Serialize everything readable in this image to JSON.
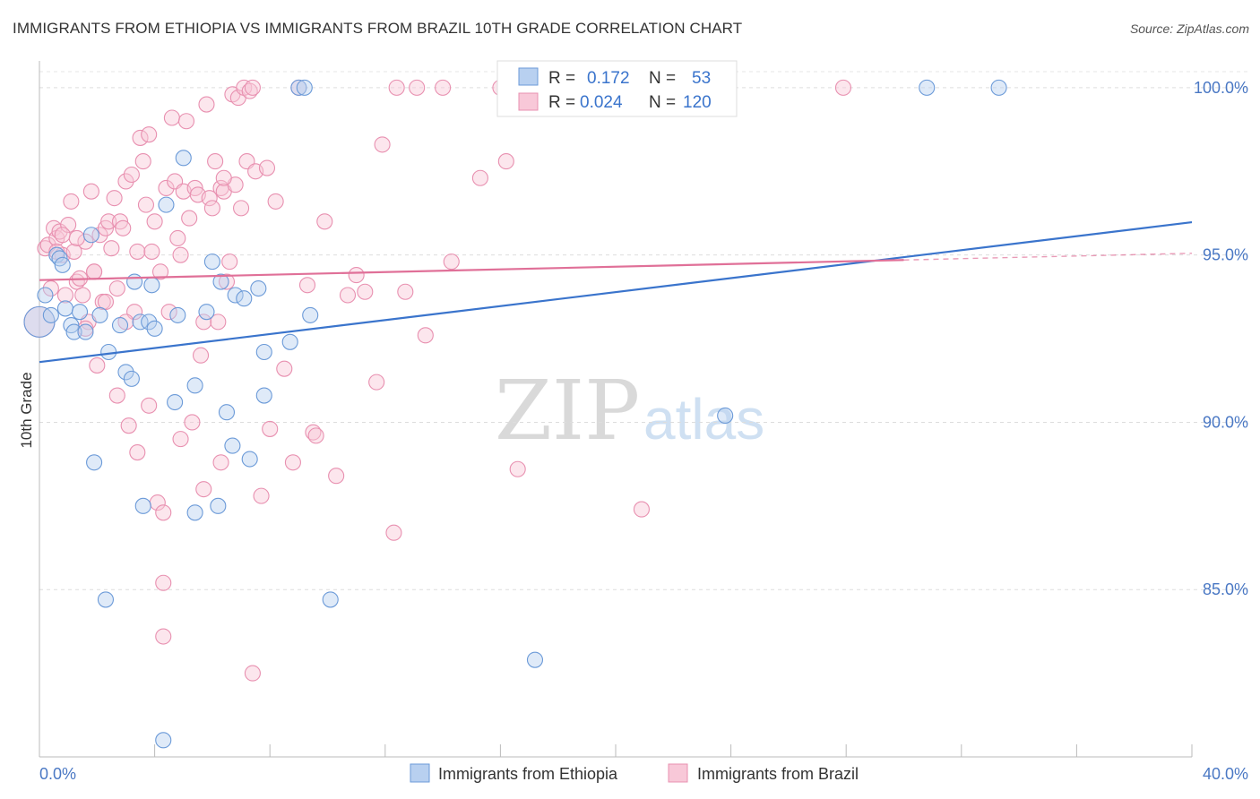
{
  "title": "IMMIGRANTS FROM ETHIOPIA VS IMMIGRANTS FROM BRAZIL 10TH GRADE CORRELATION CHART",
  "source": "Source: ZipAtlas.com",
  "watermark": {
    "zip": "ZIP",
    "atlas": "atlas"
  },
  "colors": {
    "ethiopia_fill": "#b8d0f0",
    "ethiopia_stroke": "#6b9ad8",
    "ethiopia_line": "#3a74cc",
    "brazil_fill": "#f8c8d8",
    "brazil_stroke": "#e890b0",
    "brazil_line": "#e07098",
    "tick_text": "#4a78c4"
  },
  "stats": {
    "r_label": "R =",
    "n_label": "N =",
    "ethiopia": {
      "r": "0.172",
      "n": "53"
    },
    "brazil": {
      "r": "0.024",
      "n": "120"
    }
  },
  "chart_data": {
    "type": "scatter",
    "title": "IMMIGRANTS FROM ETHIOPIA VS IMMIGRANTS FROM BRAZIL 10TH GRADE CORRELATION CHART",
    "xlabel": "",
    "ylabel": "10th Grade",
    "xlim": [
      0,
      40
    ],
    "ylim": [
      80,
      100.8
    ],
    "x_tick_labels": [
      "0.0%",
      "40.0%"
    ],
    "y_ticks": [
      85,
      90,
      95,
      100
    ],
    "y_tick_labels": [
      "85.0%",
      "90.0%",
      "95.0%",
      "100.0%"
    ],
    "grid": true,
    "legend_position": "bottom",
    "series": [
      {
        "name": "Immigrants from Ethiopia",
        "r": 0.172,
        "n": 53,
        "trend": {
          "x": [
            0,
            40
          ],
          "y": [
            91.8,
            95.98
          ]
        },
        "points": [
          [
            0.0,
            93.0
          ],
          [
            0.2,
            93.8
          ],
          [
            0.4,
            93.2
          ],
          [
            0.6,
            95.0
          ],
          [
            0.7,
            94.9
          ],
          [
            0.8,
            94.7
          ],
          [
            0.9,
            93.4
          ],
          [
            1.1,
            92.9
          ],
          [
            1.2,
            92.7
          ],
          [
            1.4,
            93.3
          ],
          [
            1.6,
            92.7
          ],
          [
            1.8,
            95.6
          ],
          [
            2.1,
            93.2
          ],
          [
            2.4,
            92.1
          ],
          [
            2.8,
            92.9
          ],
          [
            3.0,
            91.5
          ],
          [
            3.2,
            91.3
          ],
          [
            3.3,
            94.2
          ],
          [
            3.5,
            93.0
          ],
          [
            3.8,
            93.0
          ],
          [
            3.9,
            94.1
          ],
          [
            4.0,
            92.8
          ],
          [
            4.4,
            96.5
          ],
          [
            4.7,
            90.6
          ],
          [
            4.8,
            93.2
          ],
          [
            5.0,
            97.9
          ],
          [
            5.4,
            91.1
          ],
          [
            5.8,
            93.3
          ],
          [
            6.0,
            94.8
          ],
          [
            6.3,
            94.2
          ],
          [
            6.5,
            90.3
          ],
          [
            6.7,
            89.3
          ],
          [
            6.8,
            93.8
          ],
          [
            7.1,
            93.7
          ],
          [
            7.3,
            88.9
          ],
          [
            7.6,
            94.0
          ],
          [
            7.8,
            92.1
          ],
          [
            7.8,
            90.8
          ],
          [
            8.7,
            92.4
          ],
          [
            9.0,
            100.0
          ],
          [
            9.2,
            100.0
          ],
          [
            9.4,
            93.2
          ],
          [
            10.1,
            84.7
          ],
          [
            1.9,
            88.8
          ],
          [
            3.6,
            87.5
          ],
          [
            5.4,
            87.3
          ],
          [
            6.2,
            87.5
          ],
          [
            2.3,
            84.7
          ],
          [
            4.3,
            80.5
          ],
          [
            17.2,
            82.9
          ],
          [
            23.8,
            90.2
          ],
          [
            30.8,
            100.0
          ],
          [
            33.3,
            100.0
          ]
        ]
      },
      {
        "name": "Immigrants from Brazil",
        "r": 0.024,
        "n": 120,
        "trend": {
          "x": [
            0,
            30
          ],
          "y": [
            94.25,
            94.85
          ]
        },
        "trend_dashed": {
          "x": [
            30,
            40
          ],
          "y": [
            94.85,
            95.05
          ]
        },
        "points": [
          [
            0.0,
            93.0
          ],
          [
            0.2,
            95.2
          ],
          [
            0.3,
            95.3
          ],
          [
            0.4,
            94.0
          ],
          [
            0.5,
            95.8
          ],
          [
            0.6,
            95.5
          ],
          [
            0.7,
            95.7
          ],
          [
            0.8,
            95.0
          ],
          [
            0.9,
            93.8
          ],
          [
            1.0,
            95.9
          ],
          [
            1.1,
            96.6
          ],
          [
            1.2,
            95.1
          ],
          [
            1.3,
            94.2
          ],
          [
            1.4,
            94.3
          ],
          [
            1.5,
            93.8
          ],
          [
            1.6,
            95.4
          ],
          [
            1.7,
            93.0
          ],
          [
            1.8,
            96.9
          ],
          [
            1.9,
            94.5
          ],
          [
            2.0,
            91.7
          ],
          [
            2.1,
            95.6
          ],
          [
            2.2,
            93.6
          ],
          [
            2.3,
            95.8
          ],
          [
            2.4,
            96.0
          ],
          [
            2.5,
            95.2
          ],
          [
            2.6,
            96.7
          ],
          [
            2.7,
            94.0
          ],
          [
            2.8,
            96.0
          ],
          [
            2.9,
            95.8
          ],
          [
            3.0,
            97.2
          ],
          [
            3.1,
            89.9
          ],
          [
            3.2,
            97.4
          ],
          [
            3.3,
            93.3
          ],
          [
            3.4,
            95.1
          ],
          [
            3.5,
            98.5
          ],
          [
            3.6,
            97.8
          ],
          [
            3.7,
            96.5
          ],
          [
            3.8,
            98.6
          ],
          [
            3.9,
            95.1
          ],
          [
            4.0,
            96.0
          ],
          [
            4.1,
            87.6
          ],
          [
            4.2,
            94.5
          ],
          [
            4.3,
            85.2
          ],
          [
            4.4,
            97.0
          ],
          [
            4.5,
            93.3
          ],
          [
            4.6,
            99.1
          ],
          [
            4.7,
            97.2
          ],
          [
            4.8,
            95.5
          ],
          [
            4.9,
            95.0
          ],
          [
            5.0,
            96.9
          ],
          [
            5.1,
            99.0
          ],
          [
            5.2,
            96.1
          ],
          [
            5.3,
            90.0
          ],
          [
            5.4,
            97.0
          ],
          [
            5.5,
            96.8
          ],
          [
            5.6,
            92.0
          ],
          [
            5.7,
            93.0
          ],
          [
            5.8,
            99.5
          ],
          [
            5.9,
            96.7
          ],
          [
            6.0,
            96.4
          ],
          [
            6.1,
            97.8
          ],
          [
            6.2,
            93.0
          ],
          [
            6.3,
            97.0
          ],
          [
            6.4,
            96.9
          ],
          [
            6.5,
            94.2
          ],
          [
            6.6,
            94.8
          ],
          [
            6.7,
            99.8
          ],
          [
            6.8,
            97.1
          ],
          [
            6.9,
            99.7
          ],
          [
            7.0,
            96.4
          ],
          [
            7.1,
            100.0
          ],
          [
            7.2,
            97.8
          ],
          [
            7.3,
            99.9
          ],
          [
            7.4,
            100.0
          ],
          [
            7.5,
            97.5
          ],
          [
            7.7,
            87.8
          ],
          [
            7.9,
            97.6
          ],
          [
            8.2,
            96.6
          ],
          [
            8.5,
            91.6
          ],
          [
            8.8,
            88.8
          ],
          [
            9.0,
            100.0
          ],
          [
            9.3,
            94.1
          ],
          [
            9.5,
            89.7
          ],
          [
            9.9,
            96.0
          ],
          [
            10.3,
            88.4
          ],
          [
            10.7,
            93.8
          ],
          [
            11.0,
            94.4
          ],
          [
            11.3,
            93.9
          ],
          [
            11.7,
            91.2
          ],
          [
            11.9,
            98.3
          ],
          [
            12.4,
            100.0
          ],
          [
            12.7,
            93.9
          ],
          [
            13.1,
            100.0
          ],
          [
            13.4,
            92.6
          ],
          [
            14.0,
            100.0
          ],
          [
            14.3,
            94.8
          ],
          [
            15.3,
            97.3
          ],
          [
            16.0,
            100.0
          ],
          [
            16.2,
            97.8
          ],
          [
            16.6,
            88.6
          ],
          [
            20.9,
            87.4
          ],
          [
            27.9,
            100.0
          ],
          [
            0.8,
            95.6
          ],
          [
            1.6,
            92.8
          ],
          [
            2.7,
            90.8
          ],
          [
            3.8,
            90.5
          ],
          [
            4.3,
            87.3
          ],
          [
            4.9,
            89.5
          ],
          [
            5.7,
            88.0
          ],
          [
            6.3,
            88.8
          ],
          [
            7.4,
            82.5
          ],
          [
            4.3,
            83.6
          ],
          [
            12.3,
            86.7
          ],
          [
            9.6,
            89.6
          ],
          [
            3.4,
            89.1
          ],
          [
            2.3,
            93.6
          ],
          [
            1.3,
            95.5
          ],
          [
            0.6,
            95.1
          ],
          [
            8.0,
            89.8
          ],
          [
            6.4,
            97.3
          ],
          [
            3.0,
            93.0
          ],
          [
            1.9,
            94.5
          ]
        ]
      }
    ]
  },
  "legend": {
    "items": [
      {
        "label": "Immigrants from Ethiopia"
      },
      {
        "label": "Immigrants from Brazil"
      }
    ]
  }
}
